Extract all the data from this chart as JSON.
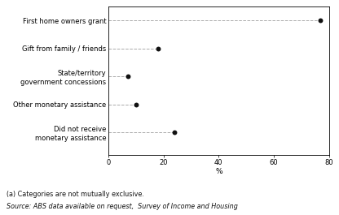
{
  "categories": [
    "First home owners grant",
    "Gift from family / friends",
    "State/territory\ngovernment concessions",
    "Other monetary assistance",
    "Did not receive\nmonetary assistance"
  ],
  "values": [
    77.0,
    18.0,
    7.0,
    10.0,
    24.0
  ],
  "xlim": [
    0,
    80
  ],
  "xticks": [
    0,
    20,
    40,
    60,
    80
  ],
  "xlabel": "%",
  "dot_color": "#111111",
  "dot_size": 18,
  "line_color": "#aaaaaa",
  "line_style": "--",
  "line_width": 0.7,
  "label_fontsize": 6.0,
  "tick_fontsize": 6.0,
  "xlabel_fontsize": 6.5,
  "footnote1": "(a) Categories are not mutually exclusive.",
  "footnote2": "Source: ABS data available on request,  Survey of Income and Housing",
  "footnote_fontsize1": 5.8,
  "footnote_fontsize2": 5.8
}
